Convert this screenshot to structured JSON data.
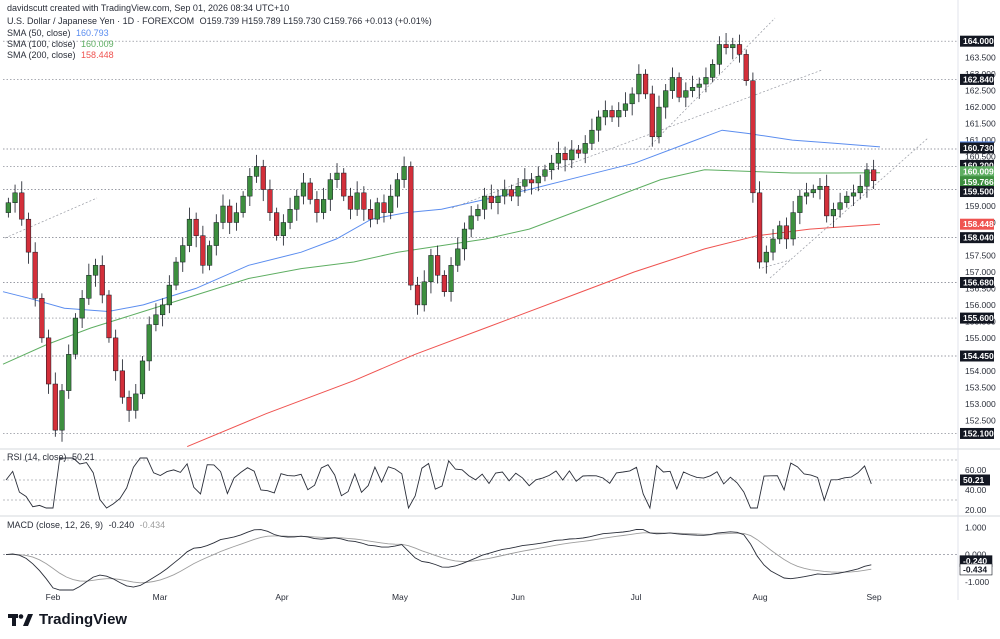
{
  "header": {
    "credit": "davidscutt created with TradingView.com, Sep 01, 2026 08:34 UTC+10",
    "symbol_line": "U.S. Dollar / Japanese Yen · 1D · FOREXCOM",
    "ohlc": "O159.739 H159.789 L159.730 C159.766 +0.013 (+0.01%)",
    "sma50_label": "SMA (50, close)",
    "sma50_value": "160.793",
    "sma100_label": "SMA (100, close)",
    "sma100_value": "160.009",
    "sma200_label": "SMA (200, close)",
    "sma200_value": "158.448",
    "rsi_label": "RSI (14, close)",
    "rsi_value": "50.21",
    "macd_label": "MACD (close, 12, 26, 9)",
    "macd_value1": "-0.240",
    "macd_value2": "-0.434"
  },
  "brand": {
    "name": "TradingView"
  },
  "colors": {
    "up": "#26a69a",
    "up_fill": "#3d8f3f",
    "down": "#d32f3a",
    "sma50": "#5b8def",
    "sma100": "#5eae62",
    "sma200": "#ef5350",
    "rsi": "#2a2e39",
    "macd": "#2a2e39",
    "signal": "#9e9e9e",
    "grid": "#d0d3da",
    "axis_text": "#2a2e39"
  },
  "chart_data": [
    {
      "type": "candlestick",
      "title": "U.S. Dollar / Japanese Yen · 1D · FOREXCOM",
      "x_ticks": [
        "Feb",
        "Mar",
        "Apr",
        "May",
        "Jun",
        "Jul",
        "Aug",
        "Sep"
      ],
      "y_ticks": [
        152.5,
        153.0,
        153.5,
        154.0,
        155.0,
        155.5,
        156.0,
        156.5,
        157.0,
        157.5,
        158.5,
        159.0,
        160.5,
        161.0,
        161.5,
        162.0,
        162.5,
        163.0,
        163.5
      ],
      "ylim": [
        151.75,
        164.4
      ],
      "price_labels": [
        {
          "text": "164.000",
          "kind": "level"
        },
        {
          "text": "162.840",
          "kind": "level"
        },
        {
          "text": "160.793",
          "kind": "sma50"
        },
        {
          "text": "160.730",
          "kind": "level"
        },
        {
          "text": "160.200",
          "kind": "level"
        },
        {
          "text": "160.009",
          "kind": "sma100"
        },
        {
          "text": "159.766",
          "kind": "last"
        },
        {
          "text": "159.500",
          "kind": "level"
        },
        {
          "text": "158.448",
          "kind": "sma200"
        },
        {
          "text": "158.040",
          "kind": "level"
        },
        {
          "text": "156.680",
          "kind": "level"
        },
        {
          "text": "155.600",
          "kind": "level"
        },
        {
          "text": "154.450",
          "kind": "level"
        },
        {
          "text": "152.100",
          "kind": "level"
        }
      ],
      "levels": [
        164.0,
        162.84,
        160.73,
        160.2,
        159.5,
        158.04,
        156.68,
        155.6,
        154.45,
        152.1
      ],
      "close_path": [
        159.1,
        159.4,
        158.6,
        157.6,
        156.2,
        155.0,
        153.6,
        152.2,
        153.4,
        154.5,
        155.6,
        156.2,
        156.9,
        157.2,
        156.3,
        155.0,
        154.0,
        153.2,
        152.8,
        153.3,
        154.3,
        155.4,
        155.7,
        156.0,
        156.6,
        157.3,
        157.8,
        158.6,
        158.1,
        157.2,
        157.8,
        158.5,
        159.0,
        158.5,
        158.8,
        159.3,
        159.9,
        160.2,
        159.5,
        158.8,
        158.1,
        158.5,
        158.9,
        159.3,
        159.7,
        159.2,
        158.8,
        159.2,
        159.8,
        160.0,
        159.3,
        158.9,
        159.4,
        158.9,
        158.6,
        159.1,
        158.8,
        159.3,
        159.8,
        160.2,
        156.6,
        156.0,
        156.7,
        157.5,
        156.9,
        156.4,
        157.2,
        157.7,
        158.3,
        158.7,
        158.9,
        159.3,
        159.1,
        159.3,
        159.5,
        159.3,
        159.6,
        159.8,
        159.7,
        159.9,
        160.1,
        160.3,
        160.6,
        160.4,
        160.7,
        160.6,
        160.9,
        161.3,
        161.7,
        161.9,
        161.7,
        161.9,
        162.1,
        162.4,
        163.0,
        162.4,
        161.1,
        162.0,
        162.5,
        162.9,
        162.3,
        162.5,
        162.6,
        162.7,
        162.9,
        163.3,
        163.9,
        163.8,
        163.9,
        163.6,
        162.8,
        159.4,
        157.3,
        157.6,
        158.0,
        158.4,
        158.0,
        158.8,
        159.3,
        159.4,
        159.5,
        159.6,
        158.7,
        158.9,
        159.1,
        159.3,
        159.4,
        159.6,
        160.1,
        159.766
      ],
      "sma50": [
        [
          0,
          156.4
        ],
        [
          0.03,
          156.2
        ],
        [
          0.07,
          155.9
        ],
        [
          0.12,
          155.8
        ],
        [
          0.16,
          156.0
        ],
        [
          0.22,
          156.5
        ],
        [
          0.28,
          157.2
        ],
        [
          0.34,
          157.6
        ],
        [
          0.38,
          158.0
        ],
        [
          0.42,
          158.6
        ],
        [
          0.46,
          158.8
        ],
        [
          0.5,
          158.9
        ],
        [
          0.55,
          159.2
        ],
        [
          0.6,
          159.5
        ],
        [
          0.66,
          159.9
        ],
        [
          0.72,
          160.3
        ],
        [
          0.78,
          160.9
        ],
        [
          0.82,
          161.3
        ],
        [
          0.85,
          161.2
        ],
        [
          0.9,
          161.0
        ],
        [
          0.95,
          160.9
        ],
        [
          1.0,
          160.793
        ]
      ],
      "sma100": [
        [
          0,
          154.2
        ],
        [
          0.05,
          154.8
        ],
        [
          0.1,
          155.3
        ],
        [
          0.16,
          155.8
        ],
        [
          0.22,
          156.3
        ],
        [
          0.28,
          156.8
        ],
        [
          0.34,
          157.1
        ],
        [
          0.4,
          157.3
        ],
        [
          0.45,
          157.6
        ],
        [
          0.5,
          157.8
        ],
        [
          0.55,
          158.0
        ],
        [
          0.6,
          158.3
        ],
        [
          0.65,
          158.8
        ],
        [
          0.7,
          159.3
        ],
        [
          0.75,
          159.8
        ],
        [
          0.8,
          160.1
        ],
        [
          0.85,
          160.05
        ],
        [
          0.9,
          160.0
        ],
        [
          0.95,
          160.0
        ],
        [
          1.0,
          160.009
        ]
      ],
      "sma200": [
        [
          0.21,
          151.7
        ],
        [
          0.3,
          152.7
        ],
        [
          0.4,
          153.7
        ],
        [
          0.47,
          154.5
        ],
        [
          0.55,
          155.3
        ],
        [
          0.65,
          156.3
        ],
        [
          0.72,
          157.0
        ],
        [
          0.8,
          157.7
        ],
        [
          0.86,
          158.1
        ],
        [
          0.92,
          158.3
        ],
        [
          1.0,
          158.448
        ]
      ]
    },
    {
      "type": "line",
      "title": "RSI (14, close)",
      "y_ticks": [
        20.0,
        40.0,
        60.0
      ],
      "ylim": [
        18,
        68
      ],
      "bands": [
        70,
        30
      ],
      "value_label": "50.21"
    },
    {
      "type": "line",
      "title": "MACD (close, 12, 26, 9)",
      "y_ticks": [
        -1.0,
        0.0,
        1.0
      ],
      "ylim": [
        -1.3,
        1.2
      ],
      "value_labels": [
        "-0.240",
        "-0.434"
      ]
    }
  ]
}
